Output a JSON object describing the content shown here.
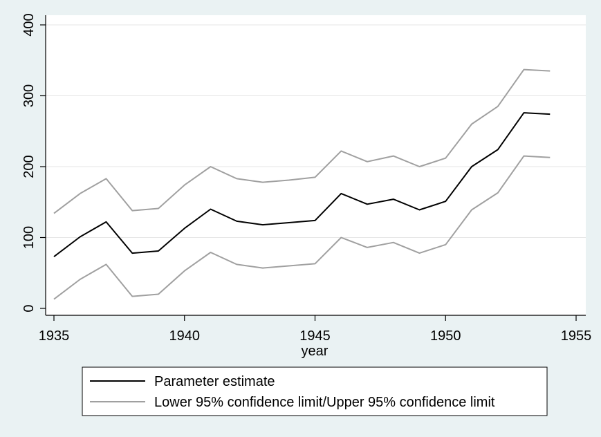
{
  "chart_data": {
    "type": "line",
    "title": "",
    "xlabel": "year",
    "ylabel": "",
    "xlim": [
      1935,
      1955
    ],
    "ylim": [
      0,
      400
    ],
    "x_ticks": [
      1935,
      1940,
      1945,
      1950,
      1955
    ],
    "y_ticks": [
      0,
      100,
      200,
      300,
      400
    ],
    "grid": "horizontal",
    "x": [
      1935,
      1936,
      1937,
      1938,
      1939,
      1940,
      1941,
      1942,
      1943,
      1944,
      1945,
      1946,
      1947,
      1948,
      1949,
      1950,
      1951,
      1952,
      1953,
      1954
    ],
    "series": [
      {
        "name": "Parameter estimate",
        "color": "#000000",
        "values": [
          73,
          101,
          122,
          78,
          81,
          113,
          140,
          123,
          118,
          121,
          124,
          162,
          147,
          154,
          139,
          151,
          200,
          224,
          276,
          274
        ]
      },
      {
        "name": "Lower 95% confidence limit",
        "color": "#a0a0a0",
        "values": [
          13,
          41,
          62,
          17,
          20,
          53,
          79,
          62,
          57,
          60,
          63,
          100,
          86,
          93,
          78,
          90,
          139,
          163,
          215,
          213
        ]
      },
      {
        "name": "Upper 95% confidence limit",
        "color": "#a0a0a0",
        "values": [
          134,
          162,
          183,
          138,
          141,
          174,
          200,
          183,
          178,
          181,
          185,
          222,
          207,
          215,
          200,
          212,
          260,
          285,
          337,
          335
        ]
      }
    ],
    "legend": {
      "placement": "bottom",
      "entries": [
        {
          "label": "Parameter estimate",
          "color": "#000000"
        },
        {
          "label": "Lower 95% confidence limit/Upper 95% confidence limit",
          "color": "#a0a0a0"
        }
      ]
    },
    "colors": {
      "background": "#eaf2f3",
      "plot_background": "#ffffff",
      "grid": "#e6e6e6",
      "axis": "#000000"
    }
  }
}
